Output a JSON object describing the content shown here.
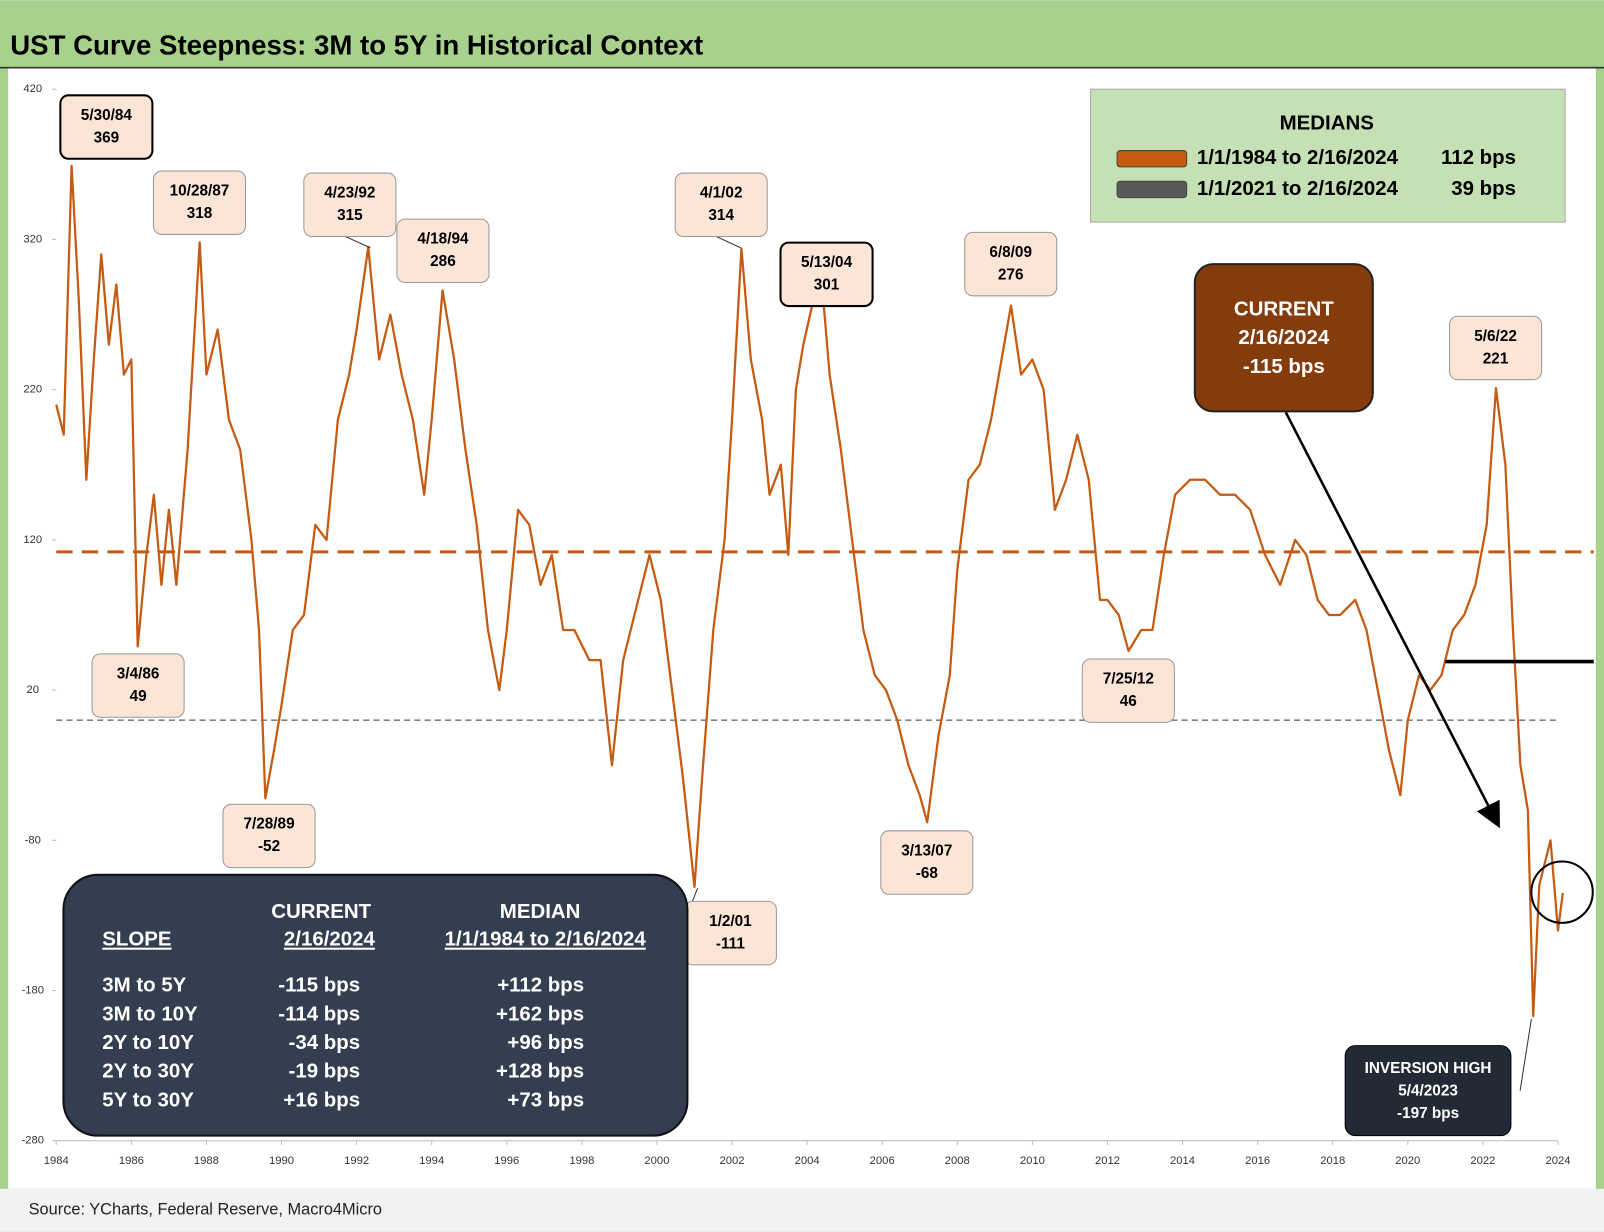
{
  "chart_data": {
    "type": "line",
    "title": "UST Curve Steepness: 3M to 5Y in Historical Context",
    "source": "Source: YCharts, Federal Reserve, Macro4Micro",
    "xlim": [
      1984,
      2024
    ],
    "xticks": [
      1984,
      1986,
      1988,
      1990,
      1992,
      1994,
      1996,
      1998,
      2000,
      2002,
      2004,
      2006,
      2008,
      2010,
      2012,
      2014,
      2016,
      2018,
      2020,
      2022,
      2024
    ],
    "ylim": [
      -280,
      420
    ],
    "yticks": [
      420,
      320,
      220,
      120,
      20,
      -80,
      -180,
      -280
    ],
    "x": [
      1984.0,
      1984.2,
      1984.41,
      1984.6,
      1984.8,
      1985.0,
      1985.2,
      1985.4,
      1985.6,
      1985.8,
      1986.0,
      1986.17,
      1986.4,
      1986.6,
      1986.8,
      1987.0,
      1987.2,
      1987.5,
      1987.82,
      1988.0,
      1988.3,
      1988.6,
      1988.9,
      1989.2,
      1989.4,
      1989.57,
      1989.8,
      1990.0,
      1990.3,
      1990.6,
      1990.9,
      1991.2,
      1991.5,
      1991.8,
      1992.0,
      1992.31,
      1992.6,
      1992.9,
      1993.2,
      1993.5,
      1993.8,
      1994.0,
      1994.29,
      1994.6,
      1994.9,
      1995.2,
      1995.5,
      1995.8,
      1996.0,
      1996.3,
      1996.6,
      1996.9,
      1997.2,
      1997.5,
      1997.8,
      1998.2,
      1998.5,
      1998.8,
      1999.1,
      1999.4,
      1999.8,
      2000.1,
      2000.4,
      2000.7,
      2001.0,
      2001.2,
      2001.5,
      2001.8,
      2002.0,
      2002.25,
      2002.5,
      2002.8,
      2003.0,
      2003.3,
      2003.5,
      2003.7,
      2003.9,
      2004.36,
      2004.6,
      2004.9,
      2005.2,
      2005.5,
      2005.8,
      2006.1,
      2006.4,
      2006.7,
      2007.0,
      2007.2,
      2007.5,
      2007.8,
      2008.0,
      2008.3,
      2008.6,
      2008.9,
      2009.43,
      2009.7,
      2010.0,
      2010.3,
      2010.6,
      2010.9,
      2011.2,
      2011.5,
      2011.8,
      2012.0,
      2012.3,
      2012.56,
      2012.9,
      2013.2,
      2013.5,
      2013.8,
      2014.2,
      2014.6,
      2015.0,
      2015.4,
      2015.8,
      2016.2,
      2016.6,
      2017.0,
      2017.3,
      2017.6,
      2017.9,
      2018.2,
      2018.6,
      2018.9,
      2019.2,
      2019.5,
      2019.8,
      2020.0,
      2020.3,
      2020.6,
      2020.9,
      2021.2,
      2021.5,
      2021.8,
      2022.1,
      2022.35,
      2022.6,
      2022.8,
      2023.0,
      2023.2,
      2023.34,
      2023.5,
      2023.7,
      2023.8,
      2024.0,
      2024.13
    ],
    "series": [
      {
        "color": "#c55a11",
        "values": [
          210,
          190,
          369,
          280,
          160,
          240,
          310,
          250,
          290,
          230,
          240,
          49,
          110,
          150,
          90,
          140,
          90,
          180,
          318,
          230,
          260,
          200,
          180,
          120,
          60,
          -52,
          -20,
          10,
          60,
          70,
          130,
          120,
          200,
          230,
          260,
          315,
          240,
          270,
          230,
          200,
          150,
          200,
          286,
          240,
          180,
          130,
          60,
          20,
          60,
          140,
          130,
          90,
          110,
          60,
          60,
          40,
          40,
          -30,
          40,
          70,
          110,
          80,
          20,
          -40,
          -111,
          -40,
          60,
          120,
          200,
          314,
          240,
          200,
          150,
          170,
          110,
          220,
          250,
          301,
          230,
          180,
          120,
          60,
          30,
          20,
          0,
          -30,
          -50,
          -68,
          -10,
          30,
          100,
          160,
          170,
          200,
          276,
          230,
          240,
          220,
          140,
          160,
          190,
          160,
          80,
          80,
          70,
          46,
          60,
          60,
          110,
          150,
          160,
          160,
          150,
          150,
          140,
          110,
          90,
          120,
          110,
          80,
          70,
          70,
          80,
          60,
          20,
          -20,
          -50,
          0,
          30,
          20,
          30,
          60,
          70,
          90,
          130,
          221,
          170,
          60,
          -30,
          -60,
          -197,
          -110,
          -90,
          -80,
          -140,
          -115
        ]
      }
    ],
    "medians": {
      "title": "MEDIANS",
      "items": [
        {
          "name": "1/1/1984 to 2/16/2024",
          "value": 112,
          "value_label": "112 bps",
          "color": "#c55a11"
        },
        {
          "name": "1/1/2021 to 2/16/2024",
          "value": 39,
          "value_label": "39 bps",
          "color": "#595959"
        }
      ]
    },
    "annotations": [
      {
        "date": "5/30/84",
        "value": 369
      },
      {
        "date": "3/4/86",
        "value": 49
      },
      {
        "date": "10/28/87",
        "value": 318
      },
      {
        "date": "7/28/89",
        "value": -52
      },
      {
        "date": "4/23/92",
        "value": 315
      },
      {
        "date": "4/18/94",
        "value": 286
      },
      {
        "date": "1/2/01",
        "value": -111
      },
      {
        "date": "4/1/02",
        "value": 314
      },
      {
        "date": "5/13/04",
        "value": 301
      },
      {
        "date": "3/13/07",
        "value": -68
      },
      {
        "date": "6/8/09",
        "value": 276
      },
      {
        "date": "7/25/12",
        "value": 46
      },
      {
        "date": "5/6/22",
        "value": 221
      }
    ],
    "current_callout": [
      "CURRENT",
      "2/16/2024",
      "-115 bps"
    ],
    "inversion_callout": [
      "INVERSION HIGH",
      "5/4/2023",
      "-197 bps"
    ],
    "table": {
      "slope": "SLOPE",
      "current": [
        "CURRENT",
        "2/16/2024"
      ],
      "median": [
        "MEDIAN",
        "1/1/1984 to 2/16/2024"
      ],
      "rows": [
        [
          "3M to 5Y",
          "-115 bps",
          "+112 bps"
        ],
        [
          "3M to 10Y",
          "-114 bps",
          "+162 bps"
        ],
        [
          "2Y to 10Y",
          "-34 bps",
          "+96 bps"
        ],
        [
          "2Y to 30Y",
          "-19 bps",
          "+128 bps"
        ],
        [
          "5Y to 30Y",
          "+16 bps",
          "+73 bps"
        ]
      ]
    }
  }
}
